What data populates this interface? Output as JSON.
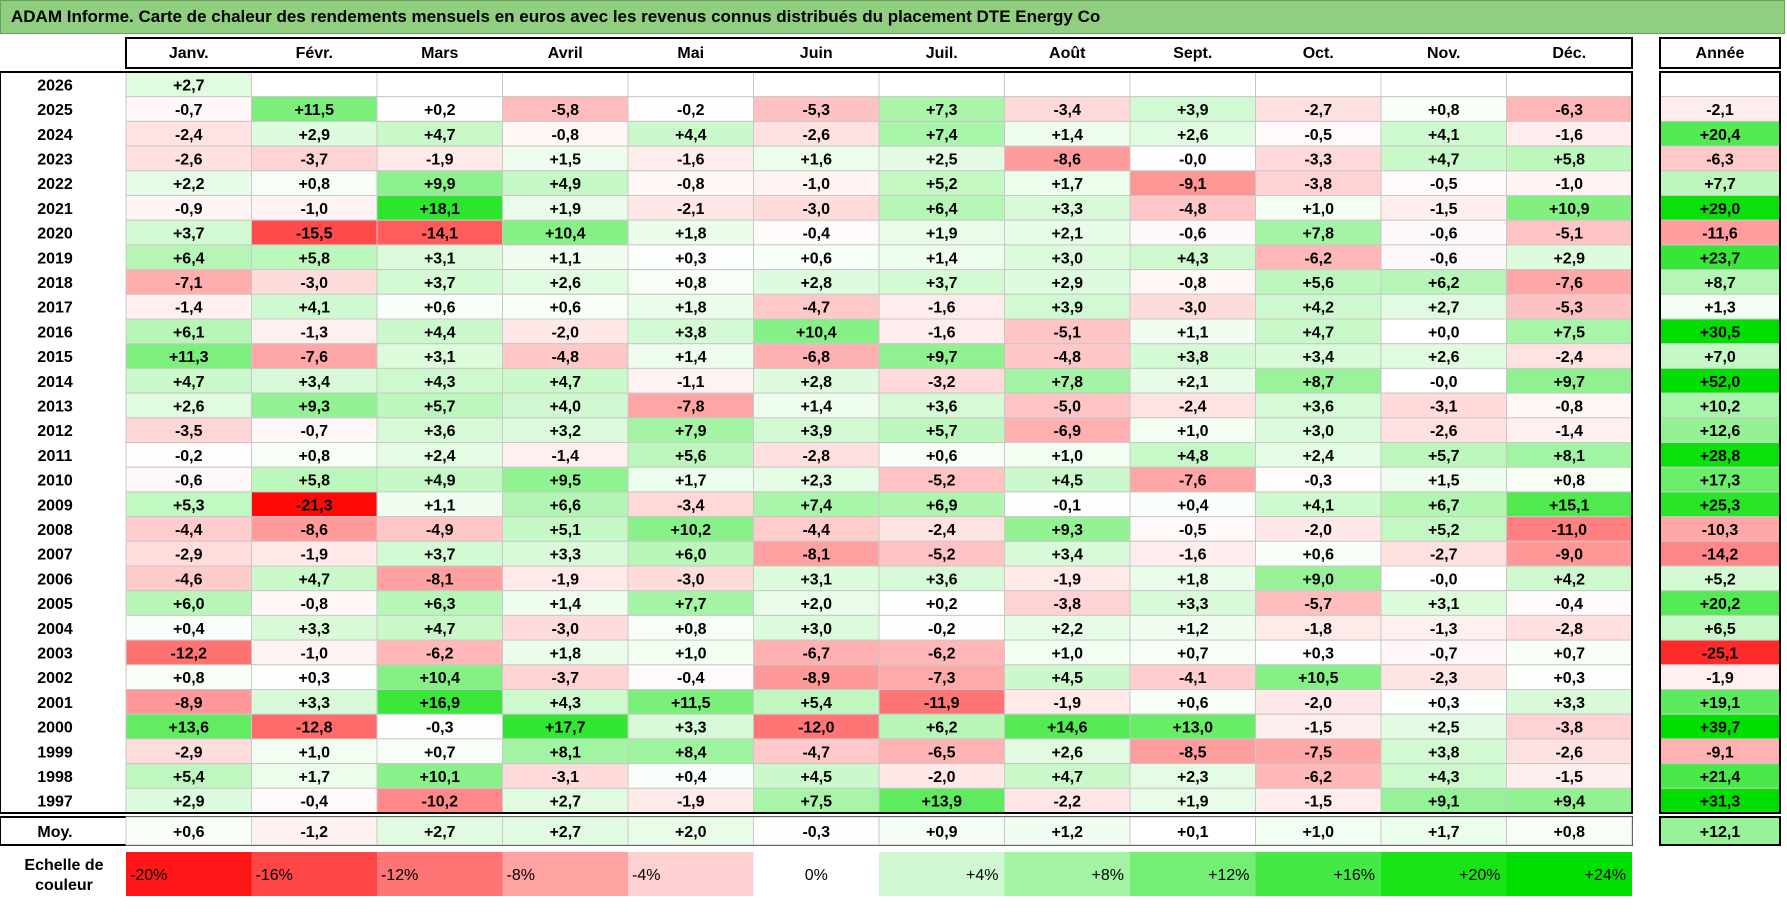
{
  "title": "ADAM Informe. Carte de chaleur des rendements mensuels en euros avec les revenus connus distribués du placement DTE Energy Co",
  "chart_data": {
    "type": "heatmap",
    "columns": [
      "Janv.",
      "Févr.",
      "Mars",
      "Avril",
      "Mai",
      "Juin",
      "Juil.",
      "Août",
      "Sept.",
      "Oct.",
      "Nov.",
      "Déc."
    ],
    "year_column_label": "Année",
    "rows": [
      {
        "year": "2026",
        "values": [
          "+2,7",
          "",
          "",
          "",
          "",
          "",
          "",
          "",
          "",
          "",
          "",
          ""
        ],
        "annual": ""
      },
      {
        "year": "2025",
        "values": [
          "-0,7",
          "+11,5",
          "+0,2",
          "-5,8",
          "-0,2",
          "-5,3",
          "+7,3",
          "-3,4",
          "+3,9",
          "-2,7",
          "+0,8",
          "-6,3"
        ],
        "annual": "-2,1"
      },
      {
        "year": "2024",
        "values": [
          "-2,4",
          "+2,9",
          "+4,7",
          "-0,8",
          "+4,4",
          "-2,6",
          "+7,4",
          "+1,4",
          "+2,6",
          "-0,5",
          "+4,1",
          "-1,6"
        ],
        "annual": "+20,4"
      },
      {
        "year": "2023",
        "values": [
          "-2,6",
          "-3,7",
          "-1,9",
          "+1,5",
          "-1,6",
          "+1,6",
          "+2,5",
          "-8,6",
          "-0,0",
          "-3,3",
          "+4,7",
          "+5,8"
        ],
        "annual": "-6,3"
      },
      {
        "year": "2022",
        "values": [
          "+2,2",
          "+0,8",
          "+9,9",
          "+4,9",
          "-0,8",
          "-1,0",
          "+5,2",
          "+1,7",
          "-9,1",
          "-3,8",
          "-0,5",
          "-1,0"
        ],
        "annual": "+7,7"
      },
      {
        "year": "2021",
        "values": [
          "-0,9",
          "-1,0",
          "+18,1",
          "+1,9",
          "-2,1",
          "-3,0",
          "+6,4",
          "+3,3",
          "-4,8",
          "+1,0",
          "-1,5",
          "+10,9"
        ],
        "annual": "+29,0"
      },
      {
        "year": "2020",
        "values": [
          "+3,7",
          "-15,5",
          "-14,1",
          "+10,4",
          "+1,8",
          "-0,4",
          "+1,9",
          "+2,1",
          "-0,6",
          "+7,8",
          "-0,6",
          "-5,1"
        ],
        "annual": "-11,6"
      },
      {
        "year": "2019",
        "values": [
          "+6,4",
          "+5,8",
          "+3,1",
          "+1,1",
          "+0,3",
          "+0,6",
          "+1,4",
          "+3,0",
          "+4,3",
          "-6,2",
          "-0,6",
          "+2,9"
        ],
        "annual": "+23,7"
      },
      {
        "year": "2018",
        "values": [
          "-7,1",
          "-3,0",
          "+3,7",
          "+2,6",
          "+0,8",
          "+2,8",
          "+3,7",
          "+2,9",
          "-0,8",
          "+5,6",
          "+6,2",
          "-7,6"
        ],
        "annual": "+8,7"
      },
      {
        "year": "2017",
        "values": [
          "-1,4",
          "+4,1",
          "+0,6",
          "+0,6",
          "+1,8",
          "-4,7",
          "-1,6",
          "+3,9",
          "-3,0",
          "+4,2",
          "+2,7",
          "-5,3"
        ],
        "annual": "+1,3"
      },
      {
        "year": "2016",
        "values": [
          "+6,1",
          "-1,3",
          "+4,4",
          "-2,0",
          "+3,8",
          "+10,4",
          "-1,6",
          "-5,1",
          "+1,1",
          "+4,7",
          "+0,0",
          "+7,5"
        ],
        "annual": "+30,5"
      },
      {
        "year": "2015",
        "values": [
          "+11,3",
          "-7,6",
          "+3,1",
          "-4,8",
          "+1,4",
          "-6,8",
          "+9,7",
          "-4,8",
          "+3,8",
          "+3,4",
          "+2,6",
          "-2,4"
        ],
        "annual": "+7,0"
      },
      {
        "year": "2014",
        "values": [
          "+4,7",
          "+3,4",
          "+4,3",
          "+4,7",
          "-1,1",
          "+2,8",
          "-3,2",
          "+7,8",
          "+2,1",
          "+8,7",
          "-0,0",
          "+9,7"
        ],
        "annual": "+52,0"
      },
      {
        "year": "2013",
        "values": [
          "+2,6",
          "+9,3",
          "+5,7",
          "+4,0",
          "-7,8",
          "+1,4",
          "+3,6",
          "-5,0",
          "-2,4",
          "+3,6",
          "-3,1",
          "-0,8"
        ],
        "annual": "+10,2"
      },
      {
        "year": "2012",
        "values": [
          "-3,5",
          "-0,7",
          "+3,6",
          "+3,2",
          "+7,9",
          "+3,9",
          "+5,7",
          "-6,9",
          "+1,0",
          "+3,0",
          "-2,6",
          "-1,4"
        ],
        "annual": "+12,6"
      },
      {
        "year": "2011",
        "values": [
          "-0,2",
          "+0,8",
          "+2,4",
          "-1,4",
          "+5,6",
          "-2,8",
          "+0,6",
          "+1,0",
          "+4,8",
          "+2,4",
          "+5,7",
          "+8,1"
        ],
        "annual": "+28,8"
      },
      {
        "year": "2010",
        "values": [
          "-0,6",
          "+5,8",
          "+4,9",
          "+9,5",
          "+1,7",
          "+2,3",
          "-5,2",
          "+4,5",
          "-7,6",
          "-0,3",
          "+1,5",
          "+0,8"
        ],
        "annual": "+17,3"
      },
      {
        "year": "2009",
        "values": [
          "+5,3",
          "-21,3",
          "+1,1",
          "+6,6",
          "-3,4",
          "+7,4",
          "+6,9",
          "-0,1",
          "+0,4",
          "+4,1",
          "+6,7",
          "+15,1"
        ],
        "annual": "+25,3"
      },
      {
        "year": "2008",
        "values": [
          "-4,4",
          "-8,6",
          "-4,9",
          "+5,1",
          "+10,2",
          "-4,4",
          "-2,4",
          "+9,3",
          "-0,5",
          "-2,0",
          "+5,2",
          "-11,0"
        ],
        "annual": "-10,3"
      },
      {
        "year": "2007",
        "values": [
          "-2,9",
          "-1,9",
          "+3,7",
          "+3,3",
          "+6,0",
          "-8,1",
          "-5,2",
          "+3,4",
          "-1,6",
          "+0,6",
          "-2,7",
          "-9,0"
        ],
        "annual": "-14,2"
      },
      {
        "year": "2006",
        "values": [
          "-4,6",
          "+4,7",
          "-8,1",
          "-1,9",
          "-3,0",
          "+3,1",
          "+3,6",
          "-1,9",
          "+1,8",
          "+9,0",
          "-0,0",
          "+4,2"
        ],
        "annual": "+5,2"
      },
      {
        "year": "2005",
        "values": [
          "+6,0",
          "-0,8",
          "+6,3",
          "+1,4",
          "+7,7",
          "+2,0",
          "+0,2",
          "-3,8",
          "+3,3",
          "-5,7",
          "+3,1",
          "-0,4"
        ],
        "annual": "+20,2"
      },
      {
        "year": "2004",
        "values": [
          "+0,4",
          "+3,3",
          "+4,7",
          "-3,0",
          "+0,8",
          "+3,0",
          "-0,2",
          "+2,2",
          "+1,2",
          "-1,8",
          "-1,3",
          "-2,8"
        ],
        "annual": "+6,5"
      },
      {
        "year": "2003",
        "values": [
          "-12,2",
          "-1,0",
          "-6,2",
          "+1,8",
          "+1,0",
          "-6,7",
          "-6,2",
          "+1,0",
          "+0,7",
          "+0,3",
          "-0,7",
          "+0,7"
        ],
        "annual": "-25,1"
      },
      {
        "year": "2002",
        "values": [
          "+0,8",
          "+0,3",
          "+10,4",
          "-3,7",
          "-0,4",
          "-8,9",
          "-7,3",
          "+4,5",
          "-4,1",
          "+10,5",
          "-2,3",
          "+0,3"
        ],
        "annual": "-1,9"
      },
      {
        "year": "2001",
        "values": [
          "-8,9",
          "+3,3",
          "+16,9",
          "+4,3",
          "+11,5",
          "+5,4",
          "-11,9",
          "-1,9",
          "+0,6",
          "-2,0",
          "+0,3",
          "+3,3"
        ],
        "annual": "+19,1"
      },
      {
        "year": "2000",
        "values": [
          "+13,6",
          "-12,8",
          "-0,3",
          "+17,7",
          "+3,3",
          "-12,0",
          "+6,2",
          "+14,6",
          "+13,0",
          "-1,5",
          "+2,5",
          "-3,8"
        ],
        "annual": "+39,7"
      },
      {
        "year": "1999",
        "values": [
          "-2,9",
          "+1,0",
          "+0,7",
          "+8,1",
          "+8,4",
          "-4,7",
          "-6,5",
          "+2,6",
          "-8,5",
          "-7,5",
          "+3,8",
          "-2,6"
        ],
        "annual": "-9,1"
      },
      {
        "year": "1998",
        "values": [
          "+5,4",
          "+1,7",
          "+10,1",
          "-3,1",
          "+0,4",
          "+4,5",
          "-2,0",
          "+4,7",
          "+2,3",
          "-6,2",
          "+4,3",
          "-1,5"
        ],
        "annual": "+21,4"
      },
      {
        "year": "1997",
        "values": [
          "+2,9",
          "-0,4",
          "-10,2",
          "+2,7",
          "-1,9",
          "+7,5",
          "+13,9",
          "-2,2",
          "+1,9",
          "-1,5",
          "+9,1",
          "+9,4"
        ],
        "annual": "+31,3"
      }
    ],
    "average": {
      "label": "Moy.",
      "values": [
        "+0,6",
        "-1,2",
        "+2,7",
        "+2,7",
        "+2,0",
        "-0,3",
        "+0,9",
        "+1,2",
        "+0,1",
        "+1,0",
        "+1,7",
        "+0,8"
      ],
      "annual": "+12,1"
    },
    "scale": {
      "label_line1": "Echelle de",
      "label_line2": "couleur",
      "stops": [
        "-20%",
        "-16%",
        "-12%",
        "-8%",
        "-4%",
        "0%",
        "+4%",
        "+8%",
        "+12%",
        "+16%",
        "+20%",
        "+24%"
      ],
      "stop_values": [
        -20,
        -16,
        -12,
        -8,
        -4,
        0,
        4,
        8,
        12,
        16,
        20,
        24
      ]
    },
    "colors": {
      "negative_max": "#ff0000",
      "neutral": "#ffffff",
      "positive_max": "#00e000",
      "title_bar": "#8fcf7f"
    }
  }
}
